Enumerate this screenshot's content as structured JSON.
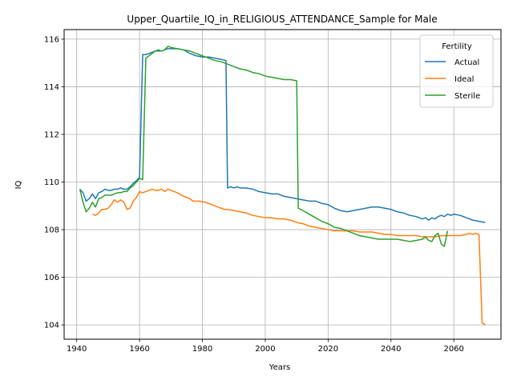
{
  "chart_data": {
    "type": "line",
    "title": "Upper_Quartile_IQ_in_RELIGIOUS_ATTENDANCE_Sample for Male",
    "xlabel": "Years",
    "ylabel": "IQ",
    "xlim": [
      1936,
      2075
    ],
    "ylim": [
      103.4,
      116.4
    ],
    "xticks": [
      1940,
      1960,
      1980,
      2000,
      2020,
      2040,
      2060
    ],
    "yticks": [
      104,
      106,
      108,
      110,
      112,
      114,
      116
    ],
    "grid": true,
    "legend": {
      "title": "Fertility",
      "position": "top-right"
    },
    "series": [
      {
        "name": "Actual",
        "color": "#1f77b4",
        "points": [
          [
            1941,
            109.7
          ],
          [
            1942,
            109.55
          ],
          [
            1943,
            109.2
          ],
          [
            1944,
            109.3
          ],
          [
            1945,
            109.5
          ],
          [
            1946,
            109.3
          ],
          [
            1947,
            109.55
          ],
          [
            1948,
            109.6
          ],
          [
            1949,
            109.7
          ],
          [
            1950,
            109.65
          ],
          [
            1951,
            109.65
          ],
          [
            1952,
            109.7
          ],
          [
            1953,
            109.7
          ],
          [
            1954,
            109.75
          ],
          [
            1955,
            109.7
          ],
          [
            1956,
            109.7
          ],
          [
            1957,
            109.8
          ],
          [
            1958,
            109.95
          ],
          [
            1959,
            110.05
          ],
          [
            1960,
            110.2
          ],
          [
            1961,
            115.35
          ],
          [
            1962,
            115.35
          ],
          [
            1963,
            115.4
          ],
          [
            1964,
            115.45
          ],
          [
            1965,
            115.5
          ],
          [
            1966,
            115.5
          ],
          [
            1967,
            115.5
          ],
          [
            1968,
            115.55
          ],
          [
            1969,
            115.6
          ],
          [
            1970,
            115.6
          ],
          [
            1972,
            115.6
          ],
          [
            1974,
            115.55
          ],
          [
            1976,
            115.4
          ],
          [
            1978,
            115.3
          ],
          [
            1980,
            115.25
          ],
          [
            1982,
            115.25
          ],
          [
            1984,
            115.2
          ],
          [
            1986,
            115.15
          ],
          [
            1987.5,
            115.1
          ],
          [
            1988,
            109.75
          ],
          [
            1989,
            109.8
          ],
          [
            1990,
            109.75
          ],
          [
            1991,
            109.8
          ],
          [
            1992,
            109.75
          ],
          [
            1994,
            109.75
          ],
          [
            1996,
            109.7
          ],
          [
            1998,
            109.6
          ],
          [
            2000,
            109.55
          ],
          [
            2002,
            109.5
          ],
          [
            2004,
            109.5
          ],
          [
            2006,
            109.4
          ],
          [
            2008,
            109.35
          ],
          [
            2010,
            109.3
          ],
          [
            2012,
            109.25
          ],
          [
            2014,
            109.2
          ],
          [
            2016,
            109.2
          ],
          [
            2018,
            109.1
          ],
          [
            2020,
            109.05
          ],
          [
            2022,
            108.9
          ],
          [
            2024,
            108.8
          ],
          [
            2026,
            108.75
          ],
          [
            2028,
            108.8
          ],
          [
            2030,
            108.85
          ],
          [
            2032,
            108.9
          ],
          [
            2034,
            108.95
          ],
          [
            2036,
            108.95
          ],
          [
            2038,
            108.9
          ],
          [
            2040,
            108.85
          ],
          [
            2042,
            108.75
          ],
          [
            2044,
            108.7
          ],
          [
            2046,
            108.6
          ],
          [
            2048,
            108.55
          ],
          [
            2049,
            108.5
          ],
          [
            2050,
            108.45
          ],
          [
            2051,
            108.5
          ],
          [
            2052,
            108.4
          ],
          [
            2053,
            108.5
          ],
          [
            2054,
            108.45
          ],
          [
            2055,
            108.55
          ],
          [
            2056,
            108.6
          ],
          [
            2057,
            108.55
          ],
          [
            2058,
            108.65
          ],
          [
            2059,
            108.6
          ],
          [
            2060,
            108.65
          ],
          [
            2062,
            108.6
          ],
          [
            2064,
            108.5
          ],
          [
            2066,
            108.4
          ],
          [
            2068,
            108.35
          ],
          [
            2070,
            108.3
          ]
        ]
      },
      {
        "name": "Ideal",
        "color": "#ff7f0e",
        "points": [
          [
            1945,
            108.65
          ],
          [
            1946,
            108.6
          ],
          [
            1947,
            108.7
          ],
          [
            1948,
            108.85
          ],
          [
            1949,
            108.85
          ],
          [
            1950,
            108.9
          ],
          [
            1951,
            109.05
          ],
          [
            1952,
            109.25
          ],
          [
            1953,
            109.15
          ],
          [
            1954,
            109.25
          ],
          [
            1955,
            109.15
          ],
          [
            1956,
            108.85
          ],
          [
            1957,
            108.9
          ],
          [
            1958,
            109.2
          ],
          [
            1959,
            109.35
          ],
          [
            1960,
            109.6
          ],
          [
            1961,
            109.55
          ],
          [
            1962,
            109.6
          ],
          [
            1963,
            109.65
          ],
          [
            1964,
            109.7
          ],
          [
            1965,
            109.65
          ],
          [
            1966,
            109.65
          ],
          [
            1967,
            109.7
          ],
          [
            1968,
            109.6
          ],
          [
            1969,
            109.7
          ],
          [
            1970,
            109.65
          ],
          [
            1972,
            109.55
          ],
          [
            1974,
            109.4
          ],
          [
            1976,
            109.3
          ],
          [
            1977,
            109.2
          ],
          [
            1979,
            109.2
          ],
          [
            1981,
            109.15
          ],
          [
            1983,
            109.05
          ],
          [
            1985,
            108.95
          ],
          [
            1987,
            108.85
          ],
          [
            1988,
            108.85
          ],
          [
            1990,
            108.8
          ],
          [
            1992,
            108.75
          ],
          [
            1994,
            108.7
          ],
          [
            1996,
            108.6
          ],
          [
            1998,
            108.55
          ],
          [
            2000,
            108.5
          ],
          [
            2002,
            108.5
          ],
          [
            2004,
            108.45
          ],
          [
            2006,
            108.45
          ],
          [
            2008,
            108.4
          ],
          [
            2010,
            108.3
          ],
          [
            2012,
            108.25
          ],
          [
            2014,
            108.15
          ],
          [
            2016,
            108.1
          ],
          [
            2018,
            108.05
          ],
          [
            2020,
            108.0
          ],
          [
            2022,
            107.95
          ],
          [
            2024,
            107.95
          ],
          [
            2026,
            107.95
          ],
          [
            2028,
            107.95
          ],
          [
            2030,
            107.9
          ],
          [
            2032,
            107.9
          ],
          [
            2034,
            107.9
          ],
          [
            2036,
            107.85
          ],
          [
            2038,
            107.8
          ],
          [
            2040,
            107.8
          ],
          [
            2042,
            107.75
          ],
          [
            2044,
            107.75
          ],
          [
            2046,
            107.75
          ],
          [
            2048,
            107.75
          ],
          [
            2050,
            107.7
          ],
          [
            2052,
            107.7
          ],
          [
            2054,
            107.7
          ],
          [
            2056,
            107.75
          ],
          [
            2058,
            107.75
          ],
          [
            2060,
            107.75
          ],
          [
            2062,
            107.75
          ],
          [
            2064,
            107.8
          ],
          [
            2065,
            107.85
          ],
          [
            2066,
            107.8
          ],
          [
            2067,
            107.85
          ],
          [
            2068,
            107.8
          ],
          [
            2069,
            104.1
          ],
          [
            2070,
            104.0
          ]
        ]
      },
      {
        "name": "Sterile",
        "color": "#2ca02c",
        "points": [
          [
            1941,
            109.7
          ],
          [
            1942,
            109.15
          ],
          [
            1943,
            108.75
          ],
          [
            1944,
            108.9
          ],
          [
            1945,
            109.15
          ],
          [
            1946,
            108.95
          ],
          [
            1947,
            109.3
          ],
          [
            1948,
            109.35
          ],
          [
            1949,
            109.45
          ],
          [
            1950,
            109.45
          ],
          [
            1951,
            109.45
          ],
          [
            1952,
            109.5
          ],
          [
            1953,
            109.55
          ],
          [
            1954,
            109.55
          ],
          [
            1955,
            109.6
          ],
          [
            1956,
            109.6
          ],
          [
            1957,
            109.75
          ],
          [
            1958,
            109.85
          ],
          [
            1959,
            110.0
          ],
          [
            1960,
            110.15
          ],
          [
            1961,
            110.1
          ],
          [
            1962,
            115.2
          ],
          [
            1963,
            115.3
          ],
          [
            1964,
            115.4
          ],
          [
            1965,
            115.5
          ],
          [
            1966,
            115.55
          ],
          [
            1967,
            115.5
          ],
          [
            1968,
            115.55
          ],
          [
            1969,
            115.7
          ],
          [
            1970,
            115.65
          ],
          [
            1972,
            115.6
          ],
          [
            1974,
            115.55
          ],
          [
            1976,
            115.5
          ],
          [
            1978,
            115.4
          ],
          [
            1980,
            115.3
          ],
          [
            1982,
            115.2
          ],
          [
            1984,
            115.1
          ],
          [
            1986,
            115.05
          ],
          [
            1988,
            114.95
          ],
          [
            1990,
            114.85
          ],
          [
            1992,
            114.75
          ],
          [
            1994,
            114.7
          ],
          [
            1996,
            114.6
          ],
          [
            1998,
            114.55
          ],
          [
            2000,
            114.45
          ],
          [
            2002,
            114.4
          ],
          [
            2004,
            114.35
          ],
          [
            2006,
            114.3
          ],
          [
            2008,
            114.3
          ],
          [
            2010,
            114.25
          ],
          [
            2010.5,
            108.9
          ],
          [
            2012,
            108.8
          ],
          [
            2014,
            108.65
          ],
          [
            2016,
            108.5
          ],
          [
            2018,
            108.35
          ],
          [
            2020,
            108.25
          ],
          [
            2022,
            108.1
          ],
          [
            2024,
            108.05
          ],
          [
            2026,
            107.95
          ],
          [
            2028,
            107.85
          ],
          [
            2030,
            107.75
          ],
          [
            2032,
            107.7
          ],
          [
            2034,
            107.65
          ],
          [
            2036,
            107.6
          ],
          [
            2038,
            107.6
          ],
          [
            2040,
            107.6
          ],
          [
            2042,
            107.6
          ],
          [
            2044,
            107.55
          ],
          [
            2046,
            107.5
          ],
          [
            2048,
            107.55
          ],
          [
            2050,
            107.6
          ],
          [
            2051,
            107.7
          ],
          [
            2052,
            107.55
          ],
          [
            2053,
            107.5
          ],
          [
            2054,
            107.75
          ],
          [
            2055,
            107.85
          ],
          [
            2056,
            107.4
          ],
          [
            2057,
            107.3
          ],
          [
            2058,
            107.95
          ]
        ]
      }
    ]
  }
}
